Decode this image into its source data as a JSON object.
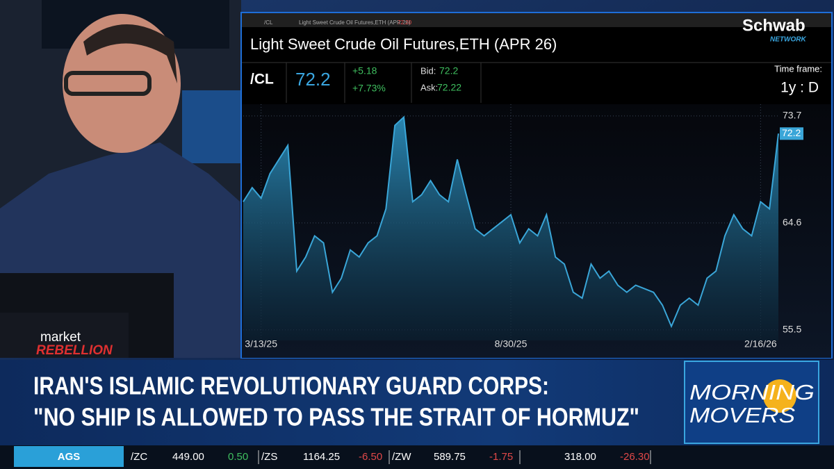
{
  "window": {
    "tab": "/CL",
    "title_bar": "Light Sweet Crude Oil Futures,ETH (APR 26)",
    "title_price": "72.20"
  },
  "brand": {
    "logo": "Schwab",
    "network": "NETWORK"
  },
  "quote": {
    "title": "Light Sweet Crude Oil Futures,ETH (APR 26)",
    "symbol": "/CL",
    "last": "72.2",
    "change": "+5.18",
    "change_pct": "+7.73%",
    "bid_label": "Bid:",
    "bid": "72.2",
    "ask_label": "Ask:",
    "ask": "72.22",
    "timeframe_label": "Time frame:",
    "timeframe": "1y : D"
  },
  "chart_data": {
    "type": "area",
    "color": "#3aa6d8",
    "grid": true,
    "categories": [
      null,
      null,
      "3/13/25",
      null,
      null,
      null,
      null,
      null,
      null,
      null,
      null,
      null,
      null,
      null,
      null,
      null,
      null,
      null,
      null,
      null,
      null,
      null,
      null,
      null,
      null,
      null,
      null,
      null,
      null,
      null,
      "8/30/25",
      null,
      null,
      null,
      null,
      null,
      null,
      null,
      null,
      null,
      null,
      null,
      null,
      null,
      null,
      null,
      null,
      null,
      null,
      null,
      null,
      null,
      null,
      null,
      null,
      null,
      null,
      null,
      "2/16/26",
      null,
      null
    ],
    "values": [
      66.4,
      67.6,
      66.7,
      68.8,
      70.0,
      71.2,
      60.5,
      61.7,
      63.5,
      62.9,
      58.7,
      59.9,
      62.3,
      61.7,
      62.9,
      63.5,
      65.8,
      72.9,
      73.6,
      66.4,
      67.0,
      68.2,
      67.0,
      66.4,
      70.0,
      67.0,
      64.1,
      63.5,
      64.1,
      64.7,
      65.3,
      62.9,
      64.1,
      63.5,
      65.3,
      61.7,
      61.1,
      58.7,
      58.2,
      61.1,
      59.9,
      60.5,
      59.3,
      58.7,
      59.3,
      59.0,
      58.7,
      57.6,
      55.8,
      57.6,
      58.2,
      57.6,
      59.9,
      60.5,
      63.5,
      65.3,
      64.1,
      63.5,
      66.4,
      65.8,
      72.2
    ],
    "ylim": [
      54.6,
      74.7
    ],
    "yticks": [
      55.5,
      64.6,
      73.7
    ]
  },
  "studio": {
    "desk_brand_top": "market",
    "desk_brand_bottom": "REBELLION"
  },
  "lower_third": {
    "headline_line1": "IRAN'S ISLAMIC REVOLUTIONARY GUARD CORPS:",
    "headline_line2": "\"NO SHIP IS ALLOWED TO PASS THE STRAIT OF HORMUZ\"",
    "show_line1": "MORNING",
    "show_line2": "MOVERS"
  },
  "ticker": {
    "section": "AGS",
    "items": [
      {
        "symbol": "/ZC",
        "price": "449.00",
        "change": "0.50"
      },
      {
        "symbol": "/ZS",
        "price": "1164.25",
        "change": "-6.50"
      },
      {
        "symbol": "/ZW",
        "price": "589.75",
        "change": "-1.75"
      },
      {
        "symbol": "",
        "price": "318.00",
        "change": "-26.30"
      }
    ]
  }
}
